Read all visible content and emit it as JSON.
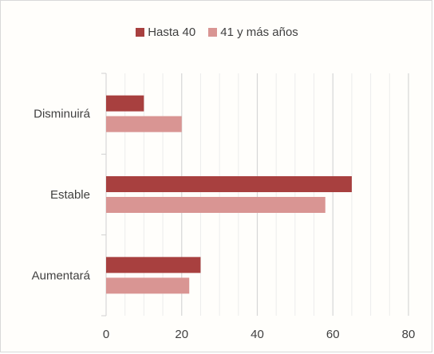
{
  "chart_data": {
    "type": "bar",
    "orientation": "horizontal",
    "categories": [
      "Disminuirá",
      "Estable",
      "Aumentará"
    ],
    "series": [
      {
        "name": "Hasta 40",
        "values": [
          10,
          65,
          25
        ],
        "color": "#a8403f"
      },
      {
        "name": "41 y más años",
        "values": [
          20,
          58,
          22
        ],
        "color": "#d99593"
      }
    ],
    "xlim": [
      0,
      80
    ],
    "xticks": [
      "0",
      "20",
      "40",
      "60",
      "80"
    ],
    "grid": "vertical",
    "legend_position": "top-center"
  }
}
